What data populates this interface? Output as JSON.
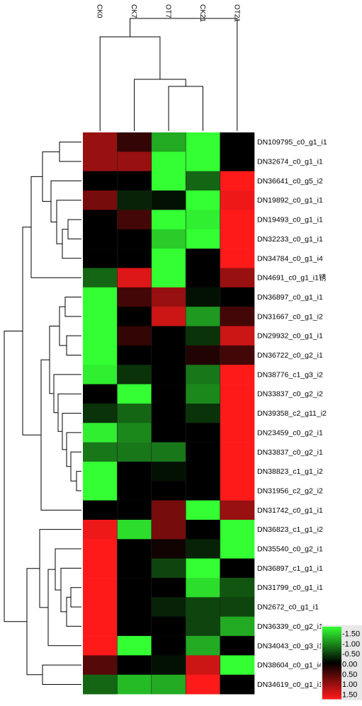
{
  "chart_data": {
    "type": "heatmap",
    "columns": [
      "CK0",
      "CK7",
      "OT7",
      "CK21",
      "OT21"
    ],
    "rows": [
      "DN109795_c0_g1_i1",
      "DN32674_c0_g1_i1",
      "DN36641_c0_g5_i2",
      "DN19892_c0_g1_i1",
      "DN19493_c0_g1_i1",
      "DN32233_c0_g1_i1",
      "DN34784_c0_g1_i4",
      "DN4691_c0_g1_i1锈",
      "DN36897_c0_g1_i1",
      "DN31667_c0_g1_i2",
      "DN29932_c0_g1_i1",
      "DN36722_c0_g2_i1",
      "DN38776_c1_g3_i2",
      "DN33837_c0_g2_i2",
      "DN39358_c2_g11_i2",
      "DN23459_c0_g2_i1",
      "DN33837_c0_g2_i1",
      "DN38823_c1_g1_i2",
      "DN31956_c2_g2_i2",
      "DN31742_c0_g1_i1",
      "DN36823_c1_g1_i2",
      "DN35540_c0_g2_i1",
      "DN36897_c1_g1_i1",
      "DN31799_c0_g1_i1",
      "DN2672_c0_g1_i1",
      "DN36339_c0_g2_i1",
      "DN34043_c0_g3_i1",
      "DN38604_c0_g1_i4",
      "DN34619_c0_g1_i1"
    ],
    "values": [
      [
        0.9,
        0.3,
        -1.0,
        -1.5,
        0.0
      ],
      [
        0.9,
        0.9,
        -1.5,
        -1.5,
        0.0
      ],
      [
        0.0,
        0.0,
        -1.5,
        -0.6,
        1.5
      ],
      [
        0.7,
        -0.2,
        -0.1,
        -1.5,
        1.4
      ],
      [
        0.0,
        0.4,
        -1.5,
        -1.4,
        1.5
      ],
      [
        0.0,
        0.0,
        -1.2,
        -1.5,
        1.5
      ],
      [
        0.0,
        0.0,
        -1.5,
        0.0,
        1.5
      ],
      [
        -0.6,
        1.3,
        -1.5,
        0.0,
        0.9
      ],
      [
        -1.5,
        0.4,
        0.9,
        -0.1,
        0.0
      ],
      [
        -1.5,
        0.0,
        1.2,
        -0.9,
        0.4
      ],
      [
        -1.5,
        0.3,
        0.0,
        -0.3,
        1.2
      ],
      [
        -1.5,
        0.0,
        0.0,
        0.2,
        0.4
      ],
      [
        -1.4,
        -0.3,
        0.0,
        -0.7,
        1.5
      ],
      [
        0.0,
        -1.5,
        0.0,
        -0.8,
        1.5
      ],
      [
        -0.3,
        -0.6,
        0.0,
        -0.3,
        1.5
      ],
      [
        -1.4,
        -0.8,
        0.0,
        0.0,
        1.5
      ],
      [
        -0.7,
        -0.7,
        -0.7,
        0.0,
        1.5
      ],
      [
        -1.5,
        0.0,
        -0.1,
        0.0,
        1.5
      ],
      [
        -1.5,
        0.0,
        0.0,
        0.0,
        1.5
      ],
      [
        0.0,
        0.0,
        0.7,
        -1.5,
        0.9
      ],
      [
        1.4,
        -1.3,
        0.7,
        0.0,
        -1.5
      ],
      [
        1.5,
        0.0,
        0.1,
        -0.2,
        -1.5
      ],
      [
        1.5,
        0.0,
        -0.4,
        -1.5,
        0.0
      ],
      [
        1.5,
        0.0,
        0.0,
        -1.3,
        -0.5
      ],
      [
        1.5,
        0.0,
        -0.2,
        -0.4,
        -0.4
      ],
      [
        1.5,
        0.0,
        0.0,
        -0.4,
        -1.0
      ],
      [
        1.5,
        -1.5,
        0.0,
        -1.0,
        0.0
      ],
      [
        0.5,
        0.0,
        -0.1,
        1.2,
        -1.5
      ],
      [
        -0.6,
        -1.1,
        -1.0,
        1.5,
        0.0
      ]
    ],
    "legend": {
      "ticks": [
        "-1.50",
        "-1.00",
        "-0.50",
        "0.00",
        "0.50",
        "1.00",
        "1.50"
      ],
      "placement": "bottom-right"
    },
    "color_scale": {
      "min": -1.5,
      "max": 1.5,
      "low_color": "#33ff33",
      "mid_color": "#000000",
      "high_color": "#ff1a1a"
    },
    "row_order": [
      0,
      1,
      2,
      3,
      4,
      5,
      6,
      7,
      8,
      9,
      10,
      11,
      12,
      13,
      14,
      15,
      16,
      17,
      18,
      19,
      20,
      21,
      22,
      23,
      24,
      25,
      26,
      27,
      28
    ],
    "title": "",
    "xlabel": "",
    "ylabel": ""
  }
}
